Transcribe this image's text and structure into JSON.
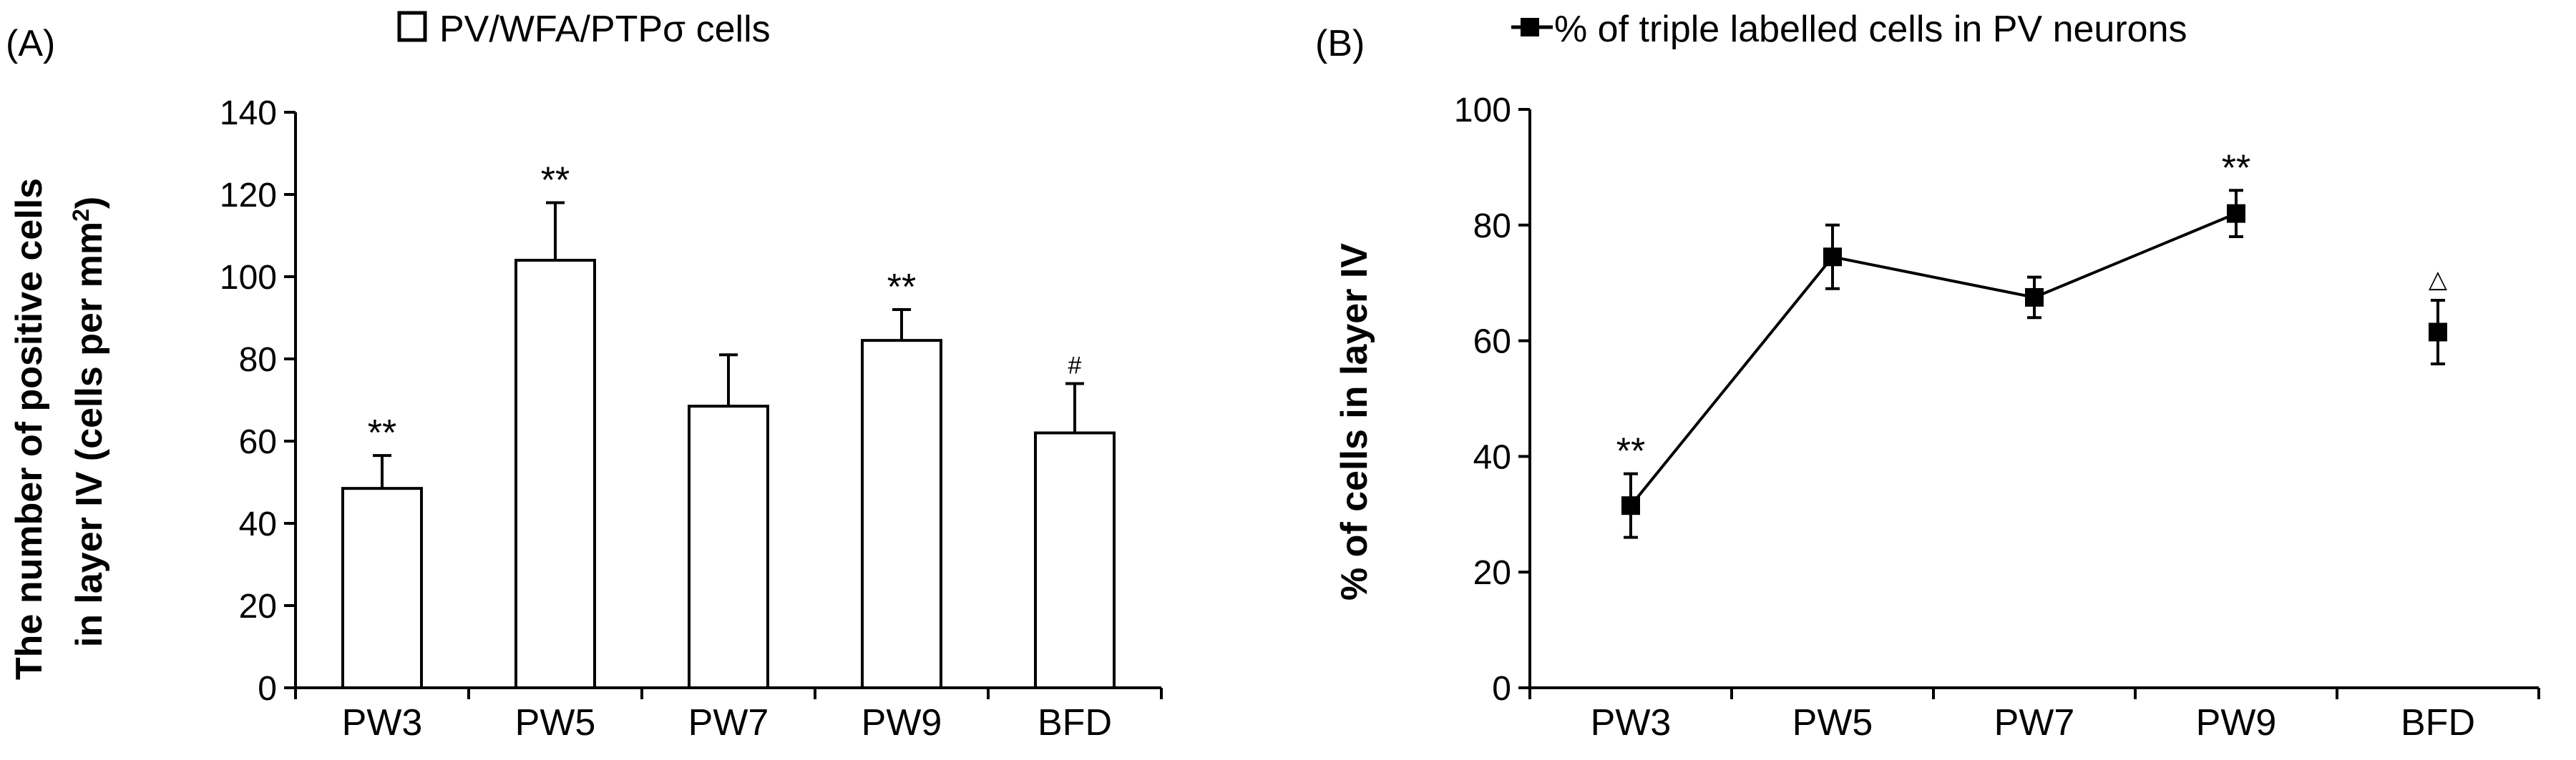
{
  "chart_data": [
    {
      "panel": "(A)",
      "type": "bar",
      "legend": "PV/WFA/PTPσ cells",
      "ylabel_line1": "The number of positive cells",
      "ylabel_line2": "in layer IV (cells per mm",
      "ylabel_sup": "2",
      "ylabel_close": ")",
      "ylim": [
        0,
        140
      ],
      "yticks": [
        0,
        20,
        40,
        60,
        80,
        100,
        120,
        140
      ],
      "categories": [
        "PW3",
        "PW5",
        "PW7",
        "PW9",
        "BFD"
      ],
      "values": [
        48.5,
        104,
        68.5,
        84.5,
        62
      ],
      "errors": [
        8,
        14,
        12.5,
        7.5,
        12
      ],
      "annotations": [
        "**",
        "**",
        "",
        "**",
        "#"
      ],
      "grid": false,
      "legend_position": "top"
    },
    {
      "panel": "(B)",
      "type": "line",
      "legend": "% of triple labelled cells in PV neurons",
      "ylabel": "% of cells in layer IV",
      "ylim": [
        0,
        100
      ],
      "yticks": [
        0,
        20,
        40,
        60,
        80,
        100
      ],
      "categories": [
        "PW3",
        "PW5",
        "PW7",
        "PW9",
        "BFD"
      ],
      "values": [
        31.5,
        74.5,
        67.5,
        82,
        61.5
      ],
      "errors": [
        5.5,
        5.5,
        3.5,
        4,
        5.5
      ],
      "connected": [
        true,
        true,
        true,
        true,
        false
      ],
      "annotations": [
        "**",
        "",
        "",
        "**",
        "△"
      ],
      "grid": false,
      "legend_position": "top"
    }
  ]
}
